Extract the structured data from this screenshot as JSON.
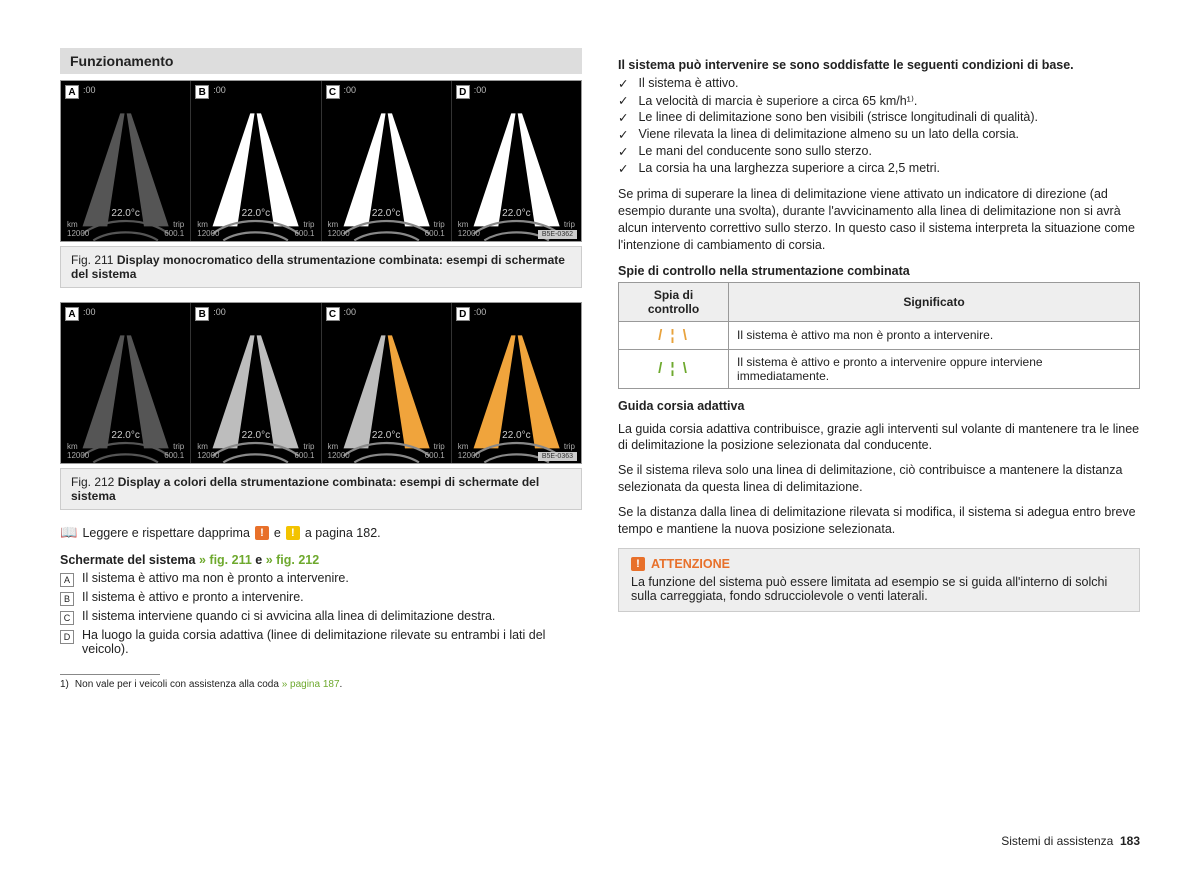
{
  "section_title": "Funzionamento",
  "figs": {
    "f211": {
      "ref": "B5E-0362",
      "caption_prefix": "Fig. 211",
      "caption": "Display monocromatico della strumentazione combinata: esempi di schermate del sistema",
      "panels": [
        "A",
        "B",
        "C",
        "D"
      ],
      "dash": {
        "time": ":00",
        "temp": "22.0°c",
        "odo_label": "km",
        "odo": "12000",
        "trip": "600.1",
        "trip_label": "trip"
      },
      "colors": {
        "lane_default": "#ffffff",
        "lane_highlight": "#ffffff",
        "bg": "#000000"
      }
    },
    "f212": {
      "ref": "B5E-0363",
      "caption_prefix": "Fig. 212",
      "caption": "Display a colori della strumentazione combinata: esempi di schermate del sistema",
      "panels": [
        "A",
        "B",
        "C",
        "D"
      ],
      "dash": {
        "time": ":00",
        "temp": "22.0°c",
        "odo_label": "km",
        "odo": "12000",
        "trip": "600.1",
        "trip_label": "trip"
      },
      "colors": {
        "lane_default": "#bdbdbd",
        "lane_highlight": "#f0a43c",
        "bg": "#000000"
      }
    }
  },
  "read_first": {
    "pre": "Leggere e rispettare dapprima",
    "and": "e",
    "post": "a pagina 182."
  },
  "schermate_head": "Schermate del sistema",
  "schermate_links": {
    "a": "» fig. 211",
    "sep": "e",
    "b": "» fig. 212"
  },
  "schermate_items": [
    {
      "l": "A",
      "t": "Il sistema è attivo ma non è pronto a intervenire."
    },
    {
      "l": "B",
      "t": "Il sistema è attivo e pronto a intervenire."
    },
    {
      "l": "C",
      "t": "Il sistema interviene quando ci si avvicina alla linea di delimitazione destra."
    },
    {
      "l": "D",
      "t": "Ha luogo la guida corsia adattiva (linee di delimitazione rilevate su entrambi i lati del veicolo)."
    }
  ],
  "footnote": {
    "num": "1)",
    "text_a": "Non vale per i veicoli con assistenza alla coda",
    "link": "» pagina 187",
    "tail": "."
  },
  "right": {
    "cond_head": "Il sistema può intervenire se sono soddisfatte le seguenti condizioni di base.",
    "conds": [
      "Il sistema è attivo.",
      "La velocità di marcia è superiore a circa 65 km/h¹⁾.",
      "Le linee di delimitazione sono ben visibili (strisce longitudinali di qualità).",
      "Viene rilevata la linea di delimitazione almeno su un lato della corsia.",
      "Le mani del conducente sono sullo sterzo.",
      "La corsia ha una larghezza superiore a circa 2,5 metri."
    ],
    "para1": "Se prima di superare la linea di delimitazione viene attivato un indicatore di direzione (ad esempio durante una svolta), durante l'avvicinamento alla linea di delimitazione non si avrà alcun intervento correttivo sullo sterzo. In questo caso il sistema interpreta la situazione come l'intenzione di cambiamento di corsia.",
    "spie_head": "Spie di controllo nella strumentazione combinata",
    "table": {
      "h1": "Spia di controllo",
      "h2": "Significato",
      "r1": "Il sistema è attivo ma non è pronto a intervenire.",
      "r2": "Il sistema è attivo e pronto a intervenire oppure interviene immediatamente."
    },
    "guida_head": "Guida corsia adattiva",
    "guida_p1": "La guida corsia adattiva contribuisce, grazie agli interventi sul volante di mantenere tra le linee di delimitazione la posizione selezionata dal conducente.",
    "guida_p2": "Se il sistema rileva solo una linea di delimitazione, ciò contribuisce a mantenere la distanza selezionata da questa linea di delimitazione.",
    "guida_p3": "Se la distanza dalla linea di delimitazione rilevata si modifica, il sistema si adegua entro breve tempo e mantiene la nuova posizione selezionata.",
    "attn_head": "ATTENZIONE",
    "attn_body": "La funzione del sistema può essere limitata ad esempio se si guida all'interno di solchi sulla carreggiata, fondo sdrucciolevole o venti laterali."
  },
  "footer": {
    "section": "Sistemi di assistenza",
    "page": "183"
  },
  "lane_glyph": "/ ¦ \\"
}
